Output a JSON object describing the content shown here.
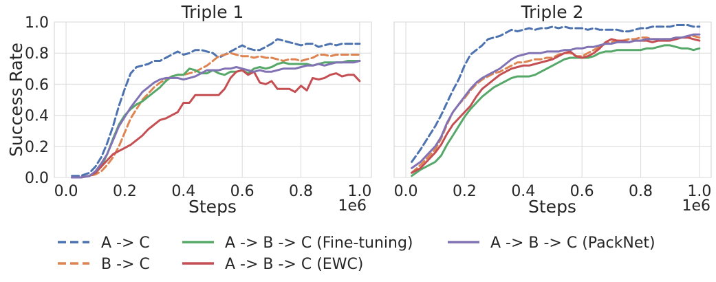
{
  "chart_data": [
    {
      "type": "line",
      "title": "Triple 1",
      "xlabel": "Steps",
      "ylabel": "Success Rate",
      "x_multiplier_label": "1e6",
      "xlim": [
        -0.04,
        1.04
      ],
      "ylim": [
        0.0,
        1.0
      ],
      "xticks": [
        0.0,
        0.2,
        0.4,
        0.6,
        0.8,
        1.0
      ],
      "xtick_labels": [
        "0.0",
        "0.2",
        "0.4",
        "0.6",
        "0.8",
        "1.0"
      ],
      "yticks": [
        0.0,
        0.2,
        0.4,
        0.6,
        0.8,
        1.0
      ],
      "ytick_labels": [
        "0.0",
        "0.2",
        "0.4",
        "0.6",
        "0.8",
        "1.0"
      ],
      "x": [
        0.02,
        0.05,
        0.08,
        0.1,
        0.12,
        0.14,
        0.16,
        0.18,
        0.2,
        0.22,
        0.24,
        0.26,
        0.28,
        0.3,
        0.32,
        0.34,
        0.36,
        0.38,
        0.4,
        0.42,
        0.44,
        0.46,
        0.48,
        0.5,
        0.52,
        0.54,
        0.56,
        0.58,
        0.6,
        0.62,
        0.64,
        0.66,
        0.68,
        0.7,
        0.72,
        0.74,
        0.76,
        0.78,
        0.8,
        0.82,
        0.84,
        0.86,
        0.88,
        0.9,
        0.92,
        0.94,
        0.96,
        0.98,
        1.0
      ],
      "series": [
        {
          "name": "A -> C",
          "values": [
            0.01,
            0.01,
            0.03,
            0.07,
            0.13,
            0.22,
            0.33,
            0.46,
            0.57,
            0.67,
            0.71,
            0.72,
            0.73,
            0.75,
            0.75,
            0.77,
            0.79,
            0.81,
            0.79,
            0.8,
            0.82,
            0.82,
            0.81,
            0.8,
            0.77,
            0.79,
            0.81,
            0.83,
            0.85,
            0.83,
            0.82,
            0.82,
            0.84,
            0.86,
            0.89,
            0.88,
            0.87,
            0.86,
            0.85,
            0.86,
            0.86,
            0.84,
            0.85,
            0.86,
            0.85,
            0.86,
            0.86,
            0.86,
            0.86
          ],
          "color": "#4c72b0",
          "dash": true
        },
        {
          "name": "B -> C",
          "values": [
            0.0,
            0.0,
            0.01,
            0.02,
            0.04,
            0.08,
            0.13,
            0.2,
            0.29,
            0.38,
            0.44,
            0.5,
            0.54,
            0.58,
            0.61,
            0.63,
            0.65,
            0.66,
            0.66,
            0.67,
            0.68,
            0.7,
            0.72,
            0.75,
            0.78,
            0.79,
            0.8,
            0.79,
            0.78,
            0.78,
            0.77,
            0.78,
            0.77,
            0.77,
            0.76,
            0.75,
            0.76,
            0.76,
            0.75,
            0.76,
            0.77,
            0.79,
            0.79,
            0.78,
            0.79,
            0.79,
            0.79,
            0.79,
            0.79
          ],
          "color": "#dd8452",
          "dash": true
        },
        {
          "name": "A -> B -> C (Fine-tuning)",
          "values": [
            0.0,
            0.0,
            0.01,
            0.03,
            0.07,
            0.15,
            0.25,
            0.34,
            0.4,
            0.44,
            0.47,
            0.49,
            0.52,
            0.55,
            0.58,
            0.62,
            0.65,
            0.66,
            0.66,
            0.7,
            0.69,
            0.67,
            0.67,
            0.69,
            0.67,
            0.66,
            0.68,
            0.68,
            0.69,
            0.67,
            0.7,
            0.71,
            0.7,
            0.71,
            0.73,
            0.74,
            0.73,
            0.73,
            0.73,
            0.73,
            0.72,
            0.73,
            0.74,
            0.74,
            0.74,
            0.74,
            0.75,
            0.75,
            0.75
          ],
          "color": "#55a868",
          "dash": false
        },
        {
          "name": "A -> B -> C (EWC)",
          "values": [
            0.0,
            0.0,
            0.01,
            0.03,
            0.07,
            0.11,
            0.15,
            0.17,
            0.19,
            0.21,
            0.24,
            0.27,
            0.31,
            0.34,
            0.37,
            0.38,
            0.4,
            0.42,
            0.48,
            0.48,
            0.53,
            0.53,
            0.53,
            0.53,
            0.53,
            0.57,
            0.64,
            0.68,
            0.69,
            0.66,
            0.68,
            0.61,
            0.6,
            0.62,
            0.57,
            0.57,
            0.57,
            0.55,
            0.59,
            0.56,
            0.64,
            0.63,
            0.64,
            0.66,
            0.67,
            0.65,
            0.66,
            0.66,
            0.62
          ],
          "color": "#c44e52",
          "dash": false
        },
        {
          "name": "A -> B -> C (PackNet)",
          "values": [
            0.0,
            0.0,
            0.01,
            0.04,
            0.09,
            0.15,
            0.24,
            0.33,
            0.39,
            0.45,
            0.5,
            0.55,
            0.58,
            0.61,
            0.63,
            0.64,
            0.64,
            0.64,
            0.63,
            0.64,
            0.65,
            0.67,
            0.69,
            0.69,
            0.69,
            0.7,
            0.7,
            0.71,
            0.7,
            0.69,
            0.68,
            0.69,
            0.68,
            0.68,
            0.69,
            0.7,
            0.7,
            0.7,
            0.71,
            0.72,
            0.72,
            0.73,
            0.72,
            0.73,
            0.74,
            0.74,
            0.74,
            0.74,
            0.75
          ],
          "color": "#8172b3",
          "dash": false
        }
      ]
    },
    {
      "type": "line",
      "title": "Triple 2",
      "xlabel": "Steps",
      "ylabel": "",
      "x_multiplier_label": "1e6",
      "xlim": [
        -0.04,
        1.04
      ],
      "ylim": [
        0.0,
        1.0
      ],
      "xticks": [
        0.0,
        0.2,
        0.4,
        0.6,
        0.8,
        1.0
      ],
      "xtick_labels": [
        "0.0",
        "0.2",
        "0.4",
        "0.6",
        "0.8",
        "1.0"
      ],
      "yticks": [
        0.0,
        0.2,
        0.4,
        0.6,
        0.8,
        1.0
      ],
      "ytick_labels": [],
      "x": [
        0.02,
        0.05,
        0.08,
        0.1,
        0.12,
        0.14,
        0.16,
        0.18,
        0.2,
        0.22,
        0.24,
        0.26,
        0.28,
        0.3,
        0.32,
        0.34,
        0.36,
        0.38,
        0.4,
        0.42,
        0.44,
        0.46,
        0.48,
        0.5,
        0.52,
        0.54,
        0.56,
        0.58,
        0.6,
        0.62,
        0.64,
        0.66,
        0.68,
        0.7,
        0.72,
        0.74,
        0.76,
        0.78,
        0.8,
        0.82,
        0.84,
        0.86,
        0.88,
        0.9,
        0.92,
        0.94,
        0.96,
        0.98,
        1.0
      ],
      "series": [
        {
          "name": "A -> C",
          "values": [
            0.1,
            0.18,
            0.27,
            0.33,
            0.4,
            0.48,
            0.56,
            0.63,
            0.72,
            0.79,
            0.82,
            0.85,
            0.89,
            0.9,
            0.91,
            0.93,
            0.95,
            0.94,
            0.95,
            0.96,
            0.95,
            0.96,
            0.96,
            0.97,
            0.96,
            0.97,
            0.96,
            0.96,
            0.96,
            0.95,
            0.96,
            0.95,
            0.95,
            0.95,
            0.95,
            0.94,
            0.94,
            0.95,
            0.96,
            0.96,
            0.97,
            0.97,
            0.97,
            0.97,
            0.98,
            0.98,
            0.98,
            0.97,
            0.97
          ],
          "color": "#4c72b0",
          "dash": true
        },
        {
          "name": "B -> C",
          "values": [
            0.03,
            0.08,
            0.14,
            0.18,
            0.25,
            0.34,
            0.42,
            0.47,
            0.51,
            0.56,
            0.6,
            0.63,
            0.65,
            0.67,
            0.68,
            0.7,
            0.72,
            0.74,
            0.74,
            0.75,
            0.76,
            0.76,
            0.77,
            0.77,
            0.79,
            0.8,
            0.8,
            0.78,
            0.78,
            0.8,
            0.82,
            0.84,
            0.86,
            0.87,
            0.88,
            0.88,
            0.89,
            0.89,
            0.9,
            0.9,
            0.89,
            0.89,
            0.89,
            0.89,
            0.89,
            0.9,
            0.9,
            0.91,
            0.9
          ],
          "color": "#dd8452",
          "dash": true
        },
        {
          "name": "A -> B -> C (Fine-tuning)",
          "values": [
            0.01,
            0.05,
            0.08,
            0.1,
            0.14,
            0.21,
            0.27,
            0.33,
            0.39,
            0.44,
            0.48,
            0.52,
            0.55,
            0.58,
            0.6,
            0.62,
            0.64,
            0.65,
            0.65,
            0.65,
            0.66,
            0.68,
            0.7,
            0.72,
            0.74,
            0.76,
            0.77,
            0.77,
            0.77,
            0.77,
            0.78,
            0.8,
            0.81,
            0.81,
            0.82,
            0.82,
            0.82,
            0.82,
            0.82,
            0.83,
            0.83,
            0.84,
            0.85,
            0.85,
            0.84,
            0.83,
            0.83,
            0.82,
            0.83
          ],
          "color": "#55a868",
          "dash": false
        },
        {
          "name": "A -> B -> C (EWC)",
          "values": [
            0.03,
            0.06,
            0.12,
            0.16,
            0.21,
            0.28,
            0.34,
            0.38,
            0.42,
            0.46,
            0.52,
            0.57,
            0.6,
            0.63,
            0.66,
            0.68,
            0.7,
            0.71,
            0.72,
            0.72,
            0.73,
            0.74,
            0.75,
            0.76,
            0.78,
            0.8,
            0.81,
            0.78,
            0.77,
            0.78,
            0.8,
            0.83,
            0.87,
            0.89,
            0.88,
            0.88,
            0.87,
            0.88,
            0.88,
            0.88,
            0.87,
            0.88,
            0.88,
            0.88,
            0.89,
            0.9,
            0.9,
            0.89,
            0.88
          ],
          "color": "#c44e52",
          "dash": false
        },
        {
          "name": "A -> B -> C (PackNet)",
          "values": [
            0.06,
            0.1,
            0.16,
            0.2,
            0.26,
            0.35,
            0.42,
            0.47,
            0.52,
            0.57,
            0.61,
            0.64,
            0.66,
            0.68,
            0.7,
            0.73,
            0.76,
            0.78,
            0.79,
            0.8,
            0.8,
            0.8,
            0.81,
            0.81,
            0.81,
            0.82,
            0.82,
            0.83,
            0.83,
            0.84,
            0.84,
            0.85,
            0.86,
            0.86,
            0.87,
            0.87,
            0.87,
            0.88,
            0.88,
            0.89,
            0.89,
            0.89,
            0.89,
            0.89,
            0.9,
            0.9,
            0.91,
            0.92,
            0.92
          ],
          "color": "#8172b3",
          "dash": false
        }
      ]
    }
  ],
  "legend": {
    "placement": "bottom",
    "entries": [
      {
        "label": "A -> C",
        "color": "#4c72b0",
        "dash": true
      },
      {
        "label": "B -> C",
        "color": "#dd8452",
        "dash": true
      },
      {
        "label": "A -> B -> C (Fine-tuning)",
        "color": "#55a868",
        "dash": false
      },
      {
        "label": "A -> B -> C (EWC)",
        "color": "#c44e52",
        "dash": false
      },
      {
        "label": "A -> B -> C (PackNet)",
        "color": "#8172b3",
        "dash": false
      }
    ]
  }
}
